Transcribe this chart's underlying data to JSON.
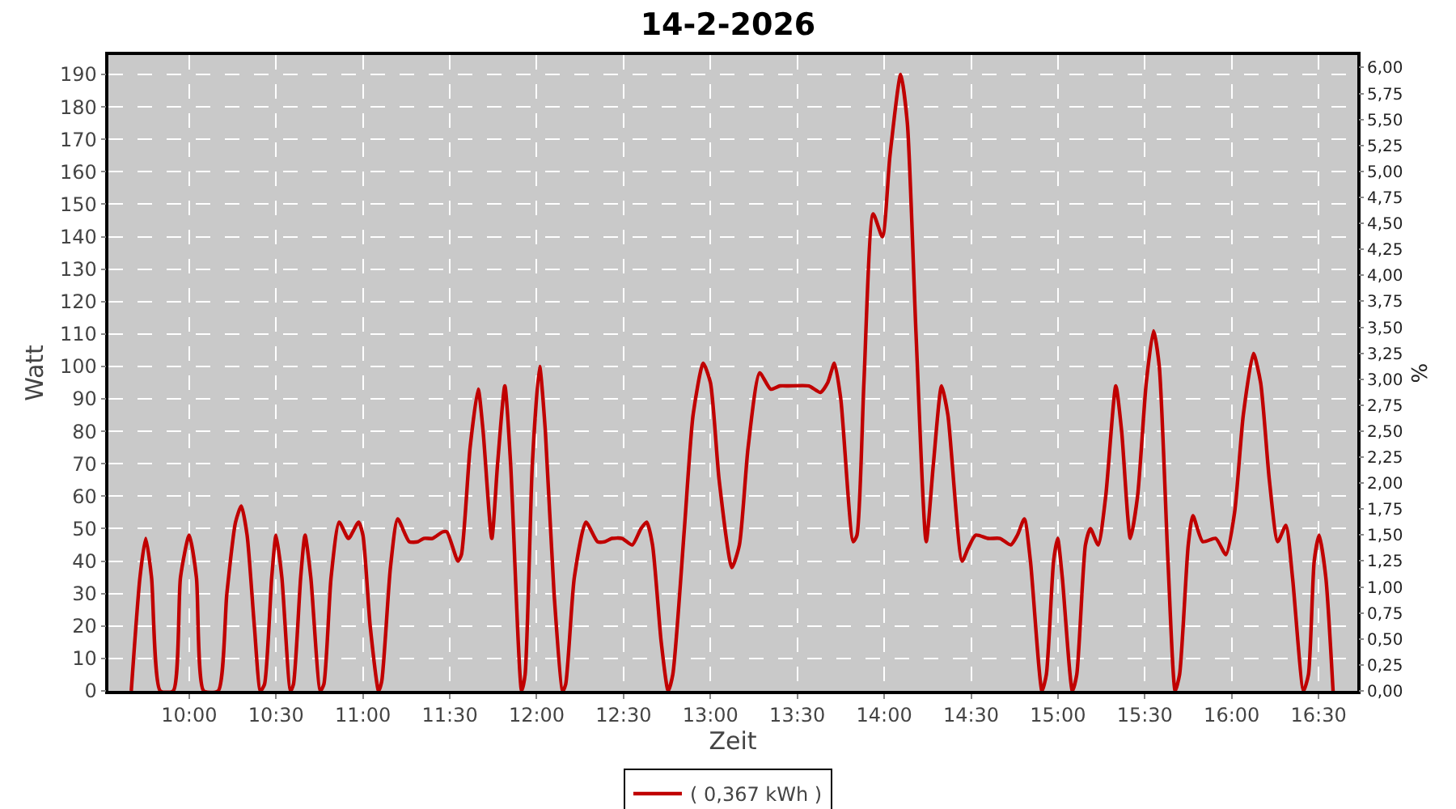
{
  "chart_data": {
    "type": "line",
    "title": "14-2-2026",
    "xlabel": "Zeit",
    "ylabel": "Watt",
    "y2label": "%",
    "x": [
      9.6667,
      9.7167,
      9.75,
      9.7833,
      9.8333,
      9.9083,
      9.95,
      10,
      10.0417,
      10.0833,
      10.1667,
      10.2167,
      10.2667,
      10.3,
      10.3333,
      10.375,
      10.41,
      10.4333,
      10.475,
      10.5,
      10.5333,
      10.5833,
      10.6,
      10.6417,
      10.6667,
      10.7,
      10.755,
      10.775,
      10.8167,
      10.8633,
      10.9167,
      10.975,
      11,
      11.0417,
      11.09,
      11.1083,
      11.1583,
      11.2,
      11.2667,
      11.3167,
      11.35,
      11.4,
      11.4583,
      11.4833,
      11.5467,
      11.5667,
      11.6167,
      11.6633,
      11.6917,
      11.7417,
      11.775,
      11.8167,
      11.85,
      11.9133,
      11.9333,
      11.975,
      12.0167,
      12.05,
      12.1,
      12.15,
      12.1667,
      12.2167,
      12.2833,
      12.35,
      12.3917,
      12.4333,
      12.4917,
      12.55,
      12.6,
      12.6333,
      12.6667,
      12.7167,
      12.7567,
      12.7833,
      12.85,
      12.9,
      12.9583,
      13,
      13.05,
      13.1233,
      13.1667,
      13.2167,
      13.2833,
      13.3467,
      13.4,
      13.45,
      13.5667,
      13.6333,
      13.675,
      13.7133,
      13.75,
      13.8217,
      13.8433,
      13.8833,
      13.9367,
      13.99,
      14.0333,
      14.095,
      14.1333,
      14.1833,
      14.2417,
      14.2833,
      14.33,
      14.3667,
      14.4483,
      14.4833,
      14.5267,
      14.6,
      14.6667,
      14.7283,
      14.7667,
      14.8067,
      14.8417,
      14.9083,
      14.9333,
      14.975,
      14.9983,
      15.025,
      15.0833,
      15.1083,
      15.1583,
      15.1867,
      15.2317,
      15.275,
      15.3333,
      15.3667,
      15.4167,
      15.4583,
      15.5083,
      15.55,
      15.5833,
      15.6333,
      15.675,
      15.7,
      15.75,
      15.7767,
      15.8333,
      15.9083,
      15.9667,
      16.0167,
      16.0667,
      16.125,
      16.1667,
      16.2167,
      16.265,
      16.3117,
      16.35,
      16.4133,
      16.4417,
      16.475,
      16.5033,
      16.5417,
      16.5833
    ],
    "series": [
      {
        "name": "( 0,367 kWh )",
        "color": "#c00000",
        "values": [
          0,
          35,
          47,
          35,
          0,
          0,
          35,
          48,
          35,
          0,
          0,
          30,
          52,
          57,
          48,
          20,
          0,
          2,
          35,
          48,
          35,
          0,
          2,
          35,
          48,
          35,
          0,
          2,
          35,
          52,
          47,
          52,
          48,
          20,
          0,
          3,
          38,
          53,
          46,
          46,
          47,
          47,
          49,
          49,
          40,
          42,
          75,
          93,
          80,
          47,
          70,
          94,
          70,
          0,
          5,
          70,
          100,
          80,
          30,
          0,
          2,
          35,
          52,
          46,
          46,
          47,
          47,
          45,
          50,
          52,
          45,
          15,
          0,
          5,
          50,
          85,
          101,
          95,
          65,
          38,
          45,
          75,
          98,
          93,
          94,
          94,
          94,
          92,
          95,
          101,
          90,
          46,
          48,
          95,
          147,
          140,
          165,
          190,
          175,
          110,
          46,
          70,
          94,
          85,
          40,
          44,
          48,
          47,
          47,
          45,
          48,
          53,
          40,
          0,
          5,
          40,
          47,
          35,
          0,
          5,
          45,
          50,
          45,
          60,
          94,
          80,
          47,
          60,
          95,
          111,
          100,
          40,
          0,
          5,
          45,
          54,
          46,
          47,
          42,
          55,
          85,
          104,
          95,
          65,
          46,
          51,
          35,
          0,
          5,
          40,
          48,
          35,
          0
        ]
      }
    ],
    "xlim": [
      9.535,
      16.723
    ],
    "xticks": [
      {
        "value": 10,
        "label": "10:00"
      },
      {
        "value": 10.5,
        "label": "10:30"
      },
      {
        "value": 11,
        "label": "11:00"
      },
      {
        "value": 11.5,
        "label": "11:30"
      },
      {
        "value": 12,
        "label": "12:00"
      },
      {
        "value": 12.5,
        "label": "12:30"
      },
      {
        "value": 13,
        "label": "13:00"
      },
      {
        "value": 13.5,
        "label": "13:30"
      },
      {
        "value": 14,
        "label": "14:00"
      },
      {
        "value": 14.5,
        "label": "14:30"
      },
      {
        "value": 15,
        "label": "15:00"
      },
      {
        "value": 15.5,
        "label": "15:30"
      },
      {
        "value": 16,
        "label": "16:00"
      },
      {
        "value": 16.5,
        "label": "16:30"
      }
    ],
    "ylim": [
      0,
      196
    ],
    "yticks": [
      0,
      10,
      20,
      30,
      40,
      50,
      60,
      70,
      80,
      90,
      100,
      110,
      120,
      130,
      140,
      150,
      160,
      170,
      180,
      190
    ],
    "y2lim": [
      0,
      6.12
    ],
    "y2ticks": [
      {
        "value": 0,
        "label": "0,00"
      },
      {
        "value": 0.25,
        "label": "0,25"
      },
      {
        "value": 0.5,
        "label": "0,50"
      },
      {
        "value": 0.75,
        "label": "0,75"
      },
      {
        "value": 1,
        "label": "1,00"
      },
      {
        "value": 1.25,
        "label": "1,25"
      },
      {
        "value": 1.5,
        "label": "1,50"
      },
      {
        "value": 1.75,
        "label": "1,75"
      },
      {
        "value": 2,
        "label": "2,00"
      },
      {
        "value": 2.25,
        "label": "2,25"
      },
      {
        "value": 2.5,
        "label": "2,50"
      },
      {
        "value": 2.75,
        "label": "2,75"
      },
      {
        "value": 3,
        "label": "3,00"
      },
      {
        "value": 3.25,
        "label": "3,25"
      },
      {
        "value": 3.5,
        "label": "3,50"
      },
      {
        "value": 3.75,
        "label": "3,75"
      },
      {
        "value": 4,
        "label": "4,00"
      },
      {
        "value": 4.25,
        "label": "4,25"
      },
      {
        "value": 4.5,
        "label": "4,50"
      },
      {
        "value": 4.75,
        "label": "4,75"
      },
      {
        "value": 5,
        "label": "5,00"
      },
      {
        "value": 5.25,
        "label": "5,25"
      },
      {
        "value": 5.5,
        "label": "5,50"
      },
      {
        "value": 5.75,
        "label": "5,75"
      },
      {
        "value": 6,
        "label": "6,00"
      }
    ],
    "grid": true,
    "legend": "bottom"
  }
}
